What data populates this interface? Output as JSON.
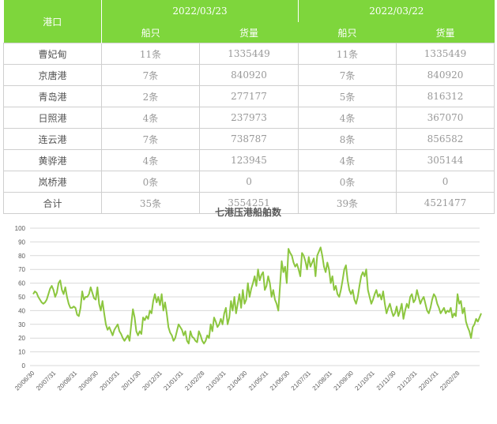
{
  "table": {
    "port_header": "港口",
    "dates": [
      "2022/03/23",
      "2022/03/22"
    ],
    "sub_headers": [
      "船只",
      "货量",
      "船只",
      "货量"
    ],
    "rows": [
      {
        "name": "曹妃甸",
        "cells": [
          "11条",
          "1335449",
          "11条",
          "1335449"
        ]
      },
      {
        "name": "京唐港",
        "cells": [
          "7条",
          "840920",
          "7条",
          "840920"
        ]
      },
      {
        "name": "青岛港",
        "cells": [
          "2条",
          "277177",
          "5条",
          "816312"
        ]
      },
      {
        "name": "日照港",
        "cells": [
          "4条",
          "237973",
          "4条",
          "367070"
        ]
      },
      {
        "name": "连云港",
        "cells": [
          "7条",
          "738787",
          "8条",
          "856582"
        ]
      },
      {
        "name": "黄骅港",
        "cells": [
          "4条",
          "123945",
          "4条",
          "305144"
        ]
      },
      {
        "name": "岚桥港",
        "cells": [
          "0条",
          "0",
          "0条",
          "0"
        ]
      },
      {
        "name": "合计",
        "cells": [
          "35条",
          "3554251",
          "39条",
          "4521477"
        ]
      }
    ]
  },
  "chart_data": {
    "type": "line",
    "title": "七港压港船舶数",
    "ylim": [
      0,
      100
    ],
    "yticks": [
      0,
      10,
      20,
      30,
      40,
      50,
      60,
      70,
      80,
      90,
      100
    ],
    "x_labels": [
      "20/06/30",
      "20/07/31",
      "20/08/31",
      "20/09/30",
      "20/10/31",
      "20/11/30",
      "20/12/31",
      "21/01/31",
      "21/02/28",
      "21/03/31",
      "21/04/30",
      "21/05/31",
      "21/06/30",
      "21/07/31",
      "21/08/31",
      "21/09/30",
      "21/10/31",
      "21/11/30",
      "21/12/31",
      "22/01/31",
      "22/02/28"
    ],
    "grid": true,
    "line_color": "#8cc63f",
    "series": [
      {
        "values": [
          52,
          54,
          53,
          50,
          48,
          46,
          45,
          46,
          48,
          52,
          56,
          58,
          55,
          50,
          53,
          60,
          62,
          55,
          52,
          57,
          50,
          45,
          42,
          42,
          43,
          42,
          37,
          36,
          42,
          54,
          48,
          50,
          50,
          52,
          57,
          53,
          49,
          48,
          57,
          45,
          40,
          47,
          38,
          30,
          26,
          28,
          25,
          22,
          26,
          28,
          30,
          25,
          23,
          20,
          18,
          20,
          22,
          18,
          30,
          41,
          35,
          25,
          22,
          25,
          23,
          35,
          33,
          36,
          34,
          40,
          38,
          47,
          52,
          46,
          50,
          44,
          52,
          40,
          46,
          38,
          28,
          24,
          22,
          18,
          20,
          25,
          30,
          28,
          26,
          22,
          25,
          18,
          16,
          25,
          21,
          20,
          18,
          17,
          25,
          22,
          18,
          16,
          18,
          22,
          20,
          30,
          25,
          35,
          32,
          28,
          30,
          34,
          30,
          38,
          42,
          30,
          35,
          47,
          40,
          50,
          38,
          45,
          52,
          42,
          55,
          45,
          48,
          60,
          50,
          56,
          60,
          65,
          58,
          70,
          62,
          66,
          68,
          55,
          58,
          65,
          60,
          50,
          55,
          48,
          45,
          40,
          58,
          76,
          68,
          72,
          60,
          85,
          82,
          80,
          75,
          72,
          74,
          70,
          65,
          82,
          80,
          76,
          70,
          79,
          72,
          75,
          78,
          65,
          80,
          83,
          86,
          80,
          72,
          68,
          75,
          70,
          60,
          65,
          55,
          58,
          52,
          50,
          55,
          62,
          70,
          73,
          62,
          55,
          52,
          55,
          48,
          45,
          50,
          58,
          65,
          68,
          65,
          70,
          55,
          50,
          45,
          48,
          52,
          55,
          50,
          52,
          48,
          54,
          45,
          38,
          42,
          45,
          40,
          36,
          38,
          43,
          36,
          40,
          45,
          34,
          40,
          45,
          42,
          50,
          52,
          46,
          48,
          55,
          50,
          45,
          48,
          50,
          45,
          40,
          38,
          42,
          48,
          52,
          50,
          45,
          42,
          38,
          40,
          42,
          38,
          40,
          39,
          42,
          35,
          38,
          36,
          52,
          45,
          47,
          38,
          42,
          32,
          28,
          25,
          20,
          28,
          30,
          34,
          32,
          35,
          38
        ]
      }
    ]
  }
}
